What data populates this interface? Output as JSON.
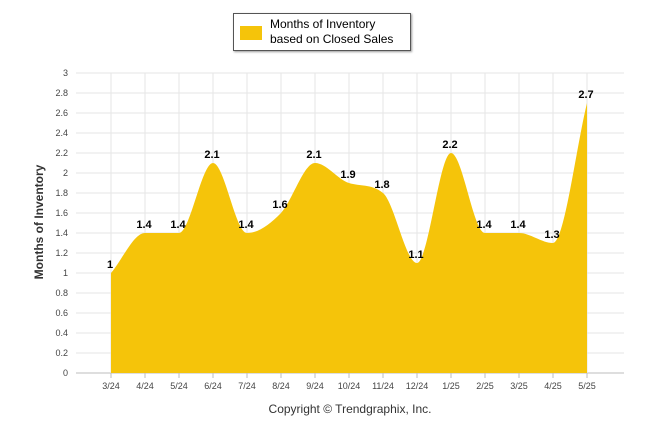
{
  "chart_data": {
    "type": "area",
    "categories": [
      "3/24",
      "4/24",
      "5/24",
      "6/24",
      "7/24",
      "8/24",
      "9/24",
      "10/24",
      "11/24",
      "12/24",
      "1/25",
      "2/25",
      "3/25",
      "4/25",
      "5/25"
    ],
    "series": [
      {
        "name": "Months of Inventory based on Closed Sales",
        "values": [
          1,
          1.4,
          1.4,
          2.1,
          1.4,
          1.6,
          2.1,
          1.9,
          1.8,
          1.1,
          2.2,
          1.4,
          1.4,
          1.3,
          2.7
        ],
        "color": "#F5C40A"
      }
    ],
    "ylabel": "Months of Inventory",
    "xlabel": "",
    "ylim": [
      0,
      3
    ],
    "yticks": [
      "0",
      "0.2",
      "0.4",
      "0.6",
      "0.8",
      "1",
      "1.2",
      "1.4",
      "1.6",
      "1.8",
      "2",
      "2.2",
      "2.4",
      "2.6",
      "2.8",
      "3"
    ],
    "grid": true,
    "legend": "top-center",
    "data_labels": true
  },
  "legend": {
    "label": "Months of Inventory based on Closed Sales",
    "color": "#F5C40A"
  },
  "footer": {
    "copyright": "Copyright © Trendgraphix, Inc."
  }
}
